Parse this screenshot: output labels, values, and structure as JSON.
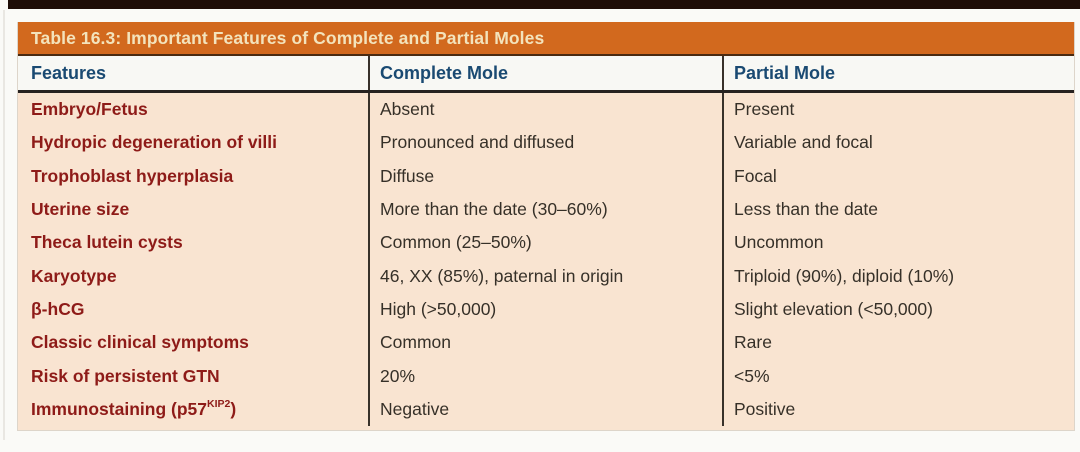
{
  "page": {
    "top_strip_color": "#1e0d07",
    "background_color": "#fafaf7"
  },
  "table": {
    "title": "Table 16.3: Important Features of Complete and Partial Moles",
    "colors": {
      "title_bar_bg": "#d2691e",
      "title_text": "#f3e3bc",
      "header_bg": "#f8f8f4",
      "header_text": "#1a4a72",
      "body_bg": "#f9e4d1",
      "feature_text": "#8e1b18",
      "value_text": "#363028",
      "divider": "#38312a"
    },
    "columns": [
      "Features",
      "Complete Mole",
      "Partial Mole"
    ],
    "rows": [
      {
        "feature": "Embryo/Fetus",
        "complete": "Absent",
        "partial": "Present"
      },
      {
        "feature": "Hydropic degeneration of villi",
        "complete": "Pronounced and diffused",
        "partial": "Variable and focal"
      },
      {
        "feature": "Trophoblast hyperplasia",
        "complete": "Diffuse",
        "partial": "Focal"
      },
      {
        "feature": "Uterine size",
        "complete": "More than the date (30–60%)",
        "partial": "Less than the date"
      },
      {
        "feature": "Theca lutein cysts",
        "complete": "Common (25–50%)",
        "partial": "Uncommon"
      },
      {
        "feature": "Karyotype",
        "complete": "46, XX (85%), paternal in origin",
        "partial": "Triploid (90%), diploid (10%)"
      },
      {
        "feature": "β-hCG",
        "complete": "High (>50,000)",
        "partial": "Slight elevation (<50,000)"
      },
      {
        "feature": "Classic clinical symptoms",
        "complete": "Common",
        "partial": "Rare"
      },
      {
        "feature": "Risk of persistent GTN",
        "complete": "20%",
        "partial": "<5%"
      },
      {
        "feature_main": "Immunostaining (p57",
        "feature_sup": "KIP2",
        "feature_end": ")",
        "complete": "Negative",
        "partial": "Positive"
      }
    ]
  }
}
